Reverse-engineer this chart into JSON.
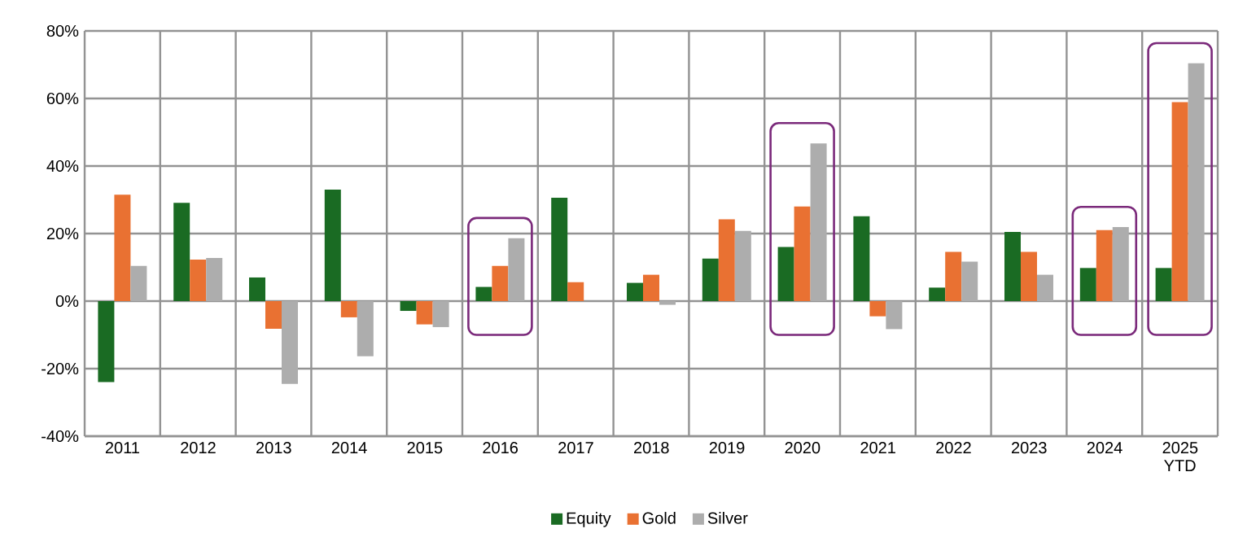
{
  "chart_data": {
    "type": "bar",
    "categories": [
      "2011",
      "2012",
      "2013",
      "2014",
      "2015",
      "2016",
      "2017",
      "2018",
      "2019",
      "2020",
      "2021",
      "2022",
      "2023",
      "2024",
      "2025 YTD"
    ],
    "series": [
      {
        "name": "Equity",
        "color": "#1a6b23",
        "values": [
          -24,
          29.1,
          7,
          33,
          -2.9,
          4.2,
          30.6,
          5.4,
          12.6,
          16,
          25.1,
          4,
          20.5,
          9.8,
          9.8
        ]
      },
      {
        "name": "Gold",
        "color": "#e97132",
        "values": [
          31.5,
          12.3,
          -8.2,
          -4.8,
          -6.9,
          10.4,
          5.6,
          7.8,
          24.2,
          28,
          -4.5,
          14.6,
          14.6,
          21,
          58.9
        ]
      },
      {
        "name": "Silver",
        "color": "#adadad",
        "values": [
          10.4,
          12.8,
          -24.5,
          -16.3,
          -7.7,
          18.6,
          null,
          -1.1,
          20.8,
          46.7,
          -8.3,
          11.7,
          7.8,
          21.9,
          70.4
        ]
      }
    ],
    "ylim": [
      -40,
      80
    ],
    "yticks": [
      {
        "value": -40,
        "label": "-40%"
      },
      {
        "value": -20,
        "label": "-20%"
      },
      {
        "value": 0,
        "label": "0%"
      },
      {
        "value": 20,
        "label": "20%"
      },
      {
        "value": 40,
        "label": "40%"
      },
      {
        "value": 60,
        "label": "60%"
      },
      {
        "value": 80,
        "label": "80%"
      }
    ],
    "grid": true,
    "legend": "bottom"
  }
}
